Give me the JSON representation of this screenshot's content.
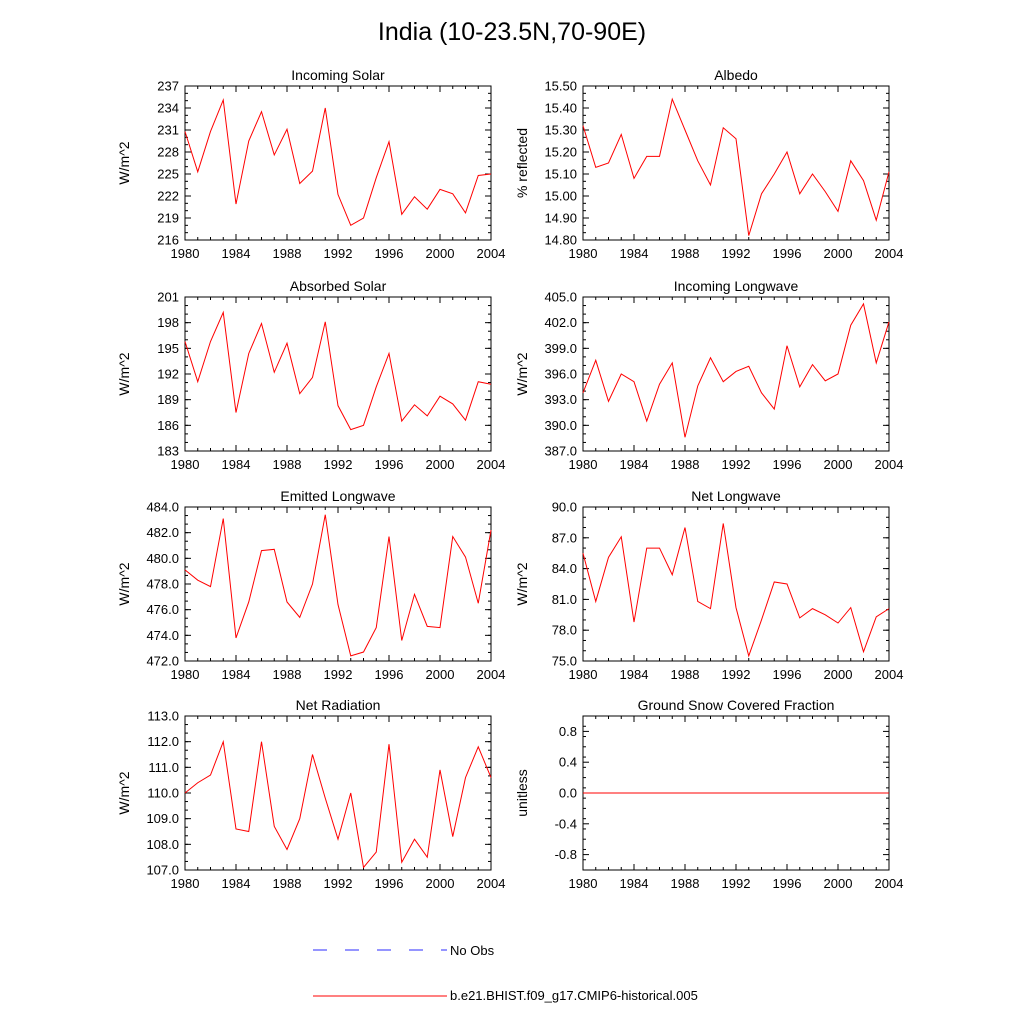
{
  "figure": {
    "title": "India (10-23.5N,70-90E)"
  },
  "legend": {
    "obs_label": "No Obs",
    "obs_color": "#2b2bff",
    "model_label": "b.e21.BHIST.f09_g17.CMIP6-historical.005",
    "model_color": "#ff0000"
  },
  "chart_data": [
    {
      "type": "line",
      "title": "Incoming Solar",
      "ylabel": "W/m^2",
      "xlabel": "",
      "xlim": [
        1980,
        2004
      ],
      "x_ticks": [
        1980,
        1984,
        1988,
        1992,
        1996,
        2000,
        2004
      ],
      "ylim": [
        216,
        237
      ],
      "y_ticks": [
        "237",
        "234",
        "231",
        "228",
        "225",
        "222",
        "219",
        "216"
      ],
      "y_tick_values": [
        237,
        234,
        231,
        228,
        225,
        222,
        219,
        216
      ],
      "x": [
        1980,
        1981,
        1982,
        1983,
        1984,
        1985,
        1986,
        1987,
        1988,
        1989,
        1990,
        1991,
        1992,
        1993,
        1994,
        1995,
        1996,
        1997,
        1998,
        1999,
        2000,
        2001,
        2002,
        2003,
        2004
      ],
      "series": [
        {
          "name": "b.e21.BHIST.f09_g17.CMIP6-historical.005",
          "values": [
            230.8,
            225.3,
            230.8,
            235.1,
            220.9,
            229.5,
            233.5,
            227.6,
            231.1,
            223.7,
            225.4,
            234.0,
            222.2,
            218.0,
            219.0,
            224.5,
            229.4,
            219.5,
            221.9,
            220.2,
            222.9,
            222.3,
            219.7,
            224.8,
            225.0
          ]
        }
      ]
    },
    {
      "type": "line",
      "title": "Albedo",
      "ylabel": "% reflected",
      "xlabel": "",
      "xlim": [
        1980,
        2004
      ],
      "x_ticks": [
        1980,
        1984,
        1988,
        1992,
        1996,
        2000,
        2004
      ],
      "ylim": [
        14.8,
        15.5
      ],
      "y_ticks": [
        "15.50",
        "15.40",
        "15.30",
        "15.20",
        "15.10",
        "15.00",
        "14.90",
        "14.80"
      ],
      "y_tick_values": [
        15.5,
        15.4,
        15.3,
        15.2,
        15.1,
        15.0,
        14.9,
        14.8
      ],
      "x": [
        1980,
        1981,
        1982,
        1983,
        1984,
        1985,
        1986,
        1987,
        1988,
        1989,
        1990,
        1991,
        1992,
        1993,
        1994,
        1995,
        1996,
        1997,
        1998,
        1999,
        2000,
        2001,
        2002,
        2003,
        2004
      ],
      "series": [
        {
          "name": "b.e21.BHIST.f09_g17.CMIP6-historical.005",
          "values": [
            15.32,
            15.13,
            15.15,
            15.28,
            15.08,
            15.18,
            15.18,
            15.44,
            15.3,
            15.16,
            15.05,
            15.31,
            15.26,
            14.82,
            15.01,
            15.1,
            15.2,
            15.01,
            15.1,
            15.02,
            14.93,
            15.16,
            15.07,
            14.89,
            15.11
          ]
        }
      ]
    },
    {
      "type": "line",
      "title": "Absorbed Solar",
      "ylabel": "W/m^2",
      "xlabel": "",
      "xlim": [
        1980,
        2004
      ],
      "x_ticks": [
        1980,
        1984,
        1988,
        1992,
        1996,
        2000,
        2004
      ],
      "ylim": [
        183,
        201
      ],
      "y_ticks": [
        "201",
        "198",
        "195",
        "192",
        "189",
        "186",
        "183"
      ],
      "y_tick_values": [
        201,
        198,
        195,
        192,
        189,
        186,
        183
      ],
      "x": [
        1980,
        1981,
        1982,
        1983,
        1984,
        1985,
        1986,
        1987,
        1988,
        1989,
        1990,
        1991,
        1992,
        1993,
        1994,
        1995,
        1996,
        1997,
        1998,
        1999,
        2000,
        2001,
        2002,
        2003,
        2004
      ],
      "series": [
        {
          "name": "b.e21.BHIST.f09_g17.CMIP6-historical.005",
          "values": [
            195.8,
            191.1,
            195.8,
            199.2,
            187.5,
            194.4,
            197.9,
            192.2,
            195.6,
            189.7,
            191.6,
            198.1,
            188.3,
            185.5,
            186.0,
            190.5,
            194.4,
            186.5,
            188.4,
            187.1,
            189.4,
            188.5,
            186.6,
            191.1,
            190.8
          ]
        }
      ]
    },
    {
      "type": "line",
      "title": "Incoming Longwave",
      "ylabel": "W/m^2",
      "xlabel": "",
      "xlim": [
        1980,
        2004
      ],
      "x_ticks": [
        1980,
        1984,
        1988,
        1992,
        1996,
        2000,
        2004
      ],
      "ylim": [
        387,
        405
      ],
      "y_ticks": [
        "405.0",
        "402.0",
        "399.0",
        "396.0",
        "393.0",
        "390.0",
        "387.0"
      ],
      "y_tick_values": [
        405,
        402,
        399,
        396,
        393,
        390,
        387
      ],
      "x": [
        1980,
        1981,
        1982,
        1983,
        1984,
        1985,
        1986,
        1987,
        1988,
        1989,
        1990,
        1991,
        1992,
        1993,
        1994,
        1995,
        1996,
        1997,
        1998,
        1999,
        2000,
        2001,
        2002,
        2003,
        2004
      ],
      "series": [
        {
          "name": "b.e21.BHIST.f09_g17.CMIP6-historical.005",
          "values": [
            393.8,
            397.6,
            392.8,
            396.0,
            395.1,
            390.5,
            394.8,
            397.3,
            388.6,
            394.6,
            397.9,
            395.1,
            396.3,
            396.9,
            393.8,
            391.9,
            399.3,
            394.5,
            397.1,
            395.2,
            396.0,
            401.7,
            404.2,
            397.3,
            402.1
          ]
        }
      ]
    },
    {
      "type": "line",
      "title": "Emitted Longwave",
      "ylabel": "W/m^2",
      "xlabel": "",
      "xlim": [
        1980,
        2004
      ],
      "x_ticks": [
        1980,
        1984,
        1988,
        1992,
        1996,
        2000,
        2004
      ],
      "ylim": [
        472,
        484
      ],
      "y_ticks": [
        "484.0",
        "482.0",
        "480.0",
        "478.0",
        "476.0",
        "474.0",
        "472.0"
      ],
      "y_tick_values": [
        484,
        482,
        480,
        478,
        476,
        474,
        472
      ],
      "x": [
        1980,
        1981,
        1982,
        1983,
        1984,
        1985,
        1986,
        1987,
        1988,
        1989,
        1990,
        1991,
        1992,
        1993,
        1994,
        1995,
        1996,
        1997,
        1998,
        1999,
        2000,
        2001,
        2002,
        2003,
        2004
      ],
      "series": [
        {
          "name": "b.e21.BHIST.f09_g17.CMIP6-historical.005",
          "values": [
            479.1,
            478.3,
            477.8,
            483.1,
            473.8,
            476.6,
            480.6,
            480.7,
            476.6,
            475.4,
            478.0,
            483.4,
            476.4,
            472.4,
            472.7,
            474.6,
            481.7,
            473.6,
            477.2,
            474.7,
            474.6,
            481.7,
            480.1,
            476.5,
            482.2
          ]
        }
      ]
    },
    {
      "type": "line",
      "title": "Net Longwave",
      "ylabel": "W/m^2",
      "xlabel": "",
      "xlim": [
        1980,
        2004
      ],
      "x_ticks": [
        1980,
        1984,
        1988,
        1992,
        1996,
        2000,
        2004
      ],
      "ylim": [
        75,
        90
      ],
      "y_ticks": [
        "90.0",
        "87.0",
        "84.0",
        "81.0",
        "78.0",
        "75.0"
      ],
      "y_tick_values": [
        90,
        87,
        84,
        81,
        78,
        75
      ],
      "x": [
        1980,
        1981,
        1982,
        1983,
        1984,
        1985,
        1986,
        1987,
        1988,
        1989,
        1990,
        1991,
        1992,
        1993,
        1994,
        1995,
        1996,
        1997,
        1998,
        1999,
        2000,
        2001,
        2002,
        2003,
        2004
      ],
      "series": [
        {
          "name": "b.e21.BHIST.f09_g17.CMIP6-historical.005",
          "values": [
            85.5,
            80.8,
            85.1,
            87.1,
            78.8,
            86.0,
            86.0,
            83.4,
            88.0,
            80.8,
            80.1,
            88.4,
            80.2,
            75.5,
            79.0,
            82.7,
            82.5,
            79.2,
            80.1,
            79.5,
            78.7,
            80.2,
            75.9,
            79.3,
            80.1
          ]
        }
      ]
    },
    {
      "type": "line",
      "title": "Net Radiation",
      "ylabel": "W/m^2",
      "xlabel": "",
      "xlim": [
        1980,
        2004
      ],
      "x_ticks": [
        1980,
        1984,
        1988,
        1992,
        1996,
        2000,
        2004
      ],
      "ylim": [
        107,
        113
      ],
      "y_ticks": [
        "113.0",
        "112.0",
        "111.0",
        "110.0",
        "109.0",
        "108.0",
        "107.0"
      ],
      "y_tick_values": [
        113,
        112,
        111,
        110,
        109,
        108,
        107
      ],
      "x": [
        1980,
        1981,
        1982,
        1983,
        1984,
        1985,
        1986,
        1987,
        1988,
        1989,
        1990,
        1991,
        1992,
        1993,
        1994,
        1995,
        1996,
        1997,
        1998,
        1999,
        2000,
        2001,
        2002,
        2003,
        2004
      ],
      "series": [
        {
          "name": "b.e21.BHIST.f09_g17.CMIP6-historical.005",
          "values": [
            110.0,
            110.4,
            110.7,
            112.0,
            108.6,
            108.5,
            112.0,
            108.7,
            107.8,
            109.0,
            111.5,
            109.8,
            108.2,
            110.0,
            107.1,
            107.7,
            111.9,
            107.3,
            108.2,
            107.5,
            110.9,
            108.3,
            110.6,
            111.8,
            110.6
          ]
        }
      ]
    },
    {
      "type": "line",
      "title": "Ground Snow Covered Fraction",
      "ylabel": "unitless",
      "xlabel": "",
      "xlim": [
        1980,
        2004
      ],
      "x_ticks": [
        1980,
        1984,
        1988,
        1992,
        1996,
        2000,
        2004
      ],
      "ylim": [
        -1.0,
        1.0
      ],
      "y_ticks": [
        "0.8",
        "0.4",
        "0.0",
        "-0.4",
        "-0.8"
      ],
      "y_tick_values": [
        0.8,
        0.4,
        0.0,
        -0.4,
        -0.8
      ],
      "x": [
        1980,
        1981,
        1982,
        1983,
        1984,
        1985,
        1986,
        1987,
        1988,
        1989,
        1990,
        1991,
        1992,
        1993,
        1994,
        1995,
        1996,
        1997,
        1998,
        1999,
        2000,
        2001,
        2002,
        2003,
        2004
      ],
      "series": [
        {
          "name": "b.e21.BHIST.f09_g17.CMIP6-historical.005",
          "values": [
            0,
            0,
            0,
            0,
            0,
            0,
            0,
            0,
            0,
            0,
            0,
            0,
            0,
            0,
            0,
            0,
            0,
            0,
            0,
            0,
            0,
            0,
            0,
            0,
            0
          ]
        }
      ]
    }
  ]
}
